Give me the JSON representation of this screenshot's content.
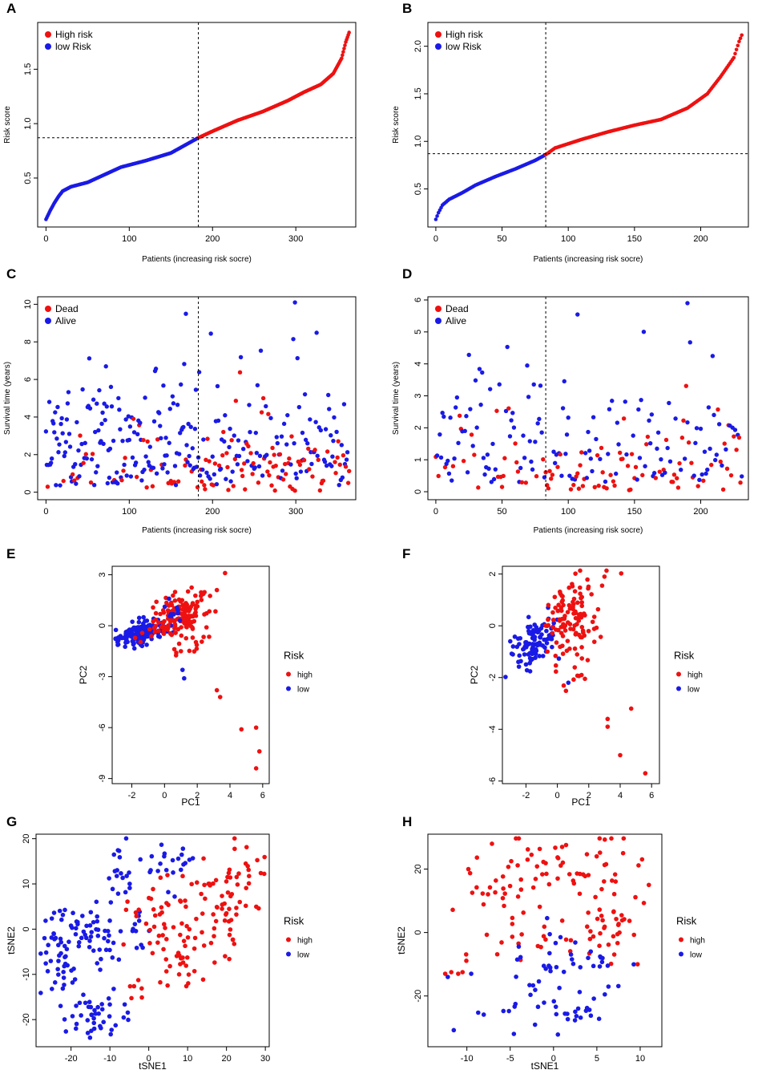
{
  "colors": {
    "high": "#ee1111",
    "low": "#1a1ae6",
    "frame": "#000000"
  },
  "chart_data": [
    {
      "panel": "A",
      "type": "scatter",
      "kind": "riskcurve",
      "n": 365,
      "cutoff_index": 183,
      "cutoff_score": 0.87,
      "curve": [
        [
          0,
          0.12
        ],
        [
          5,
          0.2
        ],
        [
          10,
          0.27
        ],
        [
          15,
          0.33
        ],
        [
          20,
          0.38
        ],
        [
          30,
          0.42
        ],
        [
          50,
          0.46
        ],
        [
          70,
          0.53
        ],
        [
          90,
          0.6
        ],
        [
          120,
          0.66
        ],
        [
          150,
          0.73
        ],
        [
          183,
          0.87
        ],
        [
          200,
          0.93
        ],
        [
          230,
          1.03
        ],
        [
          260,
          1.11
        ],
        [
          290,
          1.21
        ],
        [
          310,
          1.29
        ],
        [
          330,
          1.36
        ],
        [
          345,
          1.46
        ],
        [
          355,
          1.6
        ],
        [
          360,
          1.75
        ],
        [
          365,
          1.86
        ]
      ],
      "xlim": [
        -10,
        372
      ],
      "ylim": [
        0.05,
        1.93
      ],
      "xticks": [
        0,
        100,
        200,
        300
      ],
      "yticks": [
        0.5,
        1.0,
        1.5
      ],
      "ytick_labels": [
        "0.5",
        "1.0",
        "1.5"
      ],
      "xlabel": "Patients (increasing risk socre)",
      "ylabel": "Risk score",
      "legend": [
        {
          "label": "High risk",
          "group": "high"
        },
        {
          "label": "low Risk",
          "group": "low"
        }
      ]
    },
    {
      "panel": "B",
      "type": "scatter",
      "kind": "riskcurve",
      "n": 232,
      "cutoff_index": 83,
      "cutoff_score": 0.87,
      "curve": [
        [
          0,
          0.18
        ],
        [
          2,
          0.25
        ],
        [
          5,
          0.33
        ],
        [
          10,
          0.39
        ],
        [
          20,
          0.46
        ],
        [
          30,
          0.54
        ],
        [
          45,
          0.63
        ],
        [
          60,
          0.71
        ],
        [
          75,
          0.8
        ],
        [
          83,
          0.86
        ],
        [
          90,
          0.93
        ],
        [
          110,
          1.02
        ],
        [
          130,
          1.1
        ],
        [
          150,
          1.17
        ],
        [
          170,
          1.23
        ],
        [
          190,
          1.35
        ],
        [
          205,
          1.5
        ],
        [
          215,
          1.68
        ],
        [
          225,
          1.88
        ],
        [
          229,
          2.05
        ],
        [
          232,
          2.15
        ]
      ],
      "xlim": [
        -6,
        236
      ],
      "ylim": [
        0.1,
        2.25
      ],
      "xticks": [
        0,
        50,
        100,
        150,
        200
      ],
      "yticks": [
        0.5,
        1.0,
        1.5,
        2.0
      ],
      "ytick_labels": [
        "0.5",
        "1.0",
        "1.5",
        "2.0"
      ],
      "xlabel": "Patients (increasing risk socre)",
      "ylabel": "Risk score",
      "legend": [
        {
          "label": "High risk",
          "group": "high"
        },
        {
          "label": "low Risk",
          "group": "low"
        }
      ]
    },
    {
      "panel": "C",
      "type": "scatter",
      "kind": "survival",
      "n": 365,
      "cutoff_index": 183,
      "ymax": 10.1,
      "xlim": [
        -10,
        372
      ],
      "ylim": [
        -0.4,
        10.4
      ],
      "xticks": [
        0,
        100,
        200,
        300
      ],
      "yticks": [
        0,
        2,
        4,
        6,
        8,
        10
      ],
      "ytick_labels": [
        "0",
        "2",
        "4",
        "6",
        "8",
        "10"
      ],
      "xlabel": "Patients (increasing risk socre)",
      "ylabel": "Survival time (years)",
      "legend": [
        {
          "label": "Dead",
          "group": "high"
        },
        {
          "label": "Alive",
          "group": "low"
        }
      ]
    },
    {
      "panel": "D",
      "type": "scatter",
      "kind": "survival",
      "n": 232,
      "cutoff_index": 83,
      "ymax": 5.9,
      "xlim": [
        -6,
        236
      ],
      "ylim": [
        -0.25,
        6.1
      ],
      "xticks": [
        0,
        50,
        100,
        150,
        200
      ],
      "yticks": [
        0,
        1,
        2,
        3,
        4,
        5,
        6
      ],
      "ytick_labels": [
        "0",
        "1",
        "2",
        "3",
        "4",
        "5",
        "6"
      ],
      "xlabel": "Patients (increasing risk socre)",
      "ylabel": "Survival time (years)",
      "legend": [
        {
          "label": "Dead",
          "group": "high"
        },
        {
          "label": "Alive",
          "group": "low"
        }
      ]
    },
    {
      "panel": "E",
      "type": "scatter",
      "kind": "cluster",
      "xlim": [
        -3.2,
        6.4
      ],
      "ylim": [
        -9.3,
        3.5
      ],
      "xticks": [
        -2,
        0,
        2,
        4,
        6
      ],
      "yticks": [
        -9,
        -6,
        -3,
        0,
        3
      ],
      "ytick_labels": [
        "-9",
        "-6",
        "-3",
        "0",
        "3"
      ],
      "xlabel": "PC1",
      "ylabel": "PC2",
      "clusters": [
        {
          "group": "low",
          "cx": -1.5,
          "cy": -0.5,
          "sx": 0.75,
          "sy": 0.35,
          "n": 170,
          "tilt": 0.3
        },
        {
          "group": "high",
          "cx": 0.9,
          "cy": 0.6,
          "sx": 0.8,
          "sy": 0.7,
          "n": 150,
          "tilt": 0.2
        },
        {
          "group": "high",
          "cx": 1.8,
          "cy": -1.4,
          "sx": 0.6,
          "sy": 0.6,
          "n": 12,
          "tilt": 0
        },
        {
          "group": "low",
          "cx": 0.4,
          "cy": 0.8,
          "sx": 0.4,
          "sy": 0.6,
          "n": 10,
          "tilt": 0
        }
      ],
      "extra": [
        {
          "x": 3.7,
          "y": 3.1,
          "group": "high"
        },
        {
          "x": 3.2,
          "y": 2.1,
          "group": "high"
        },
        {
          "x": 3.2,
          "y": -3.8,
          "group": "high"
        },
        {
          "x": 3.4,
          "y": -4.2,
          "group": "high"
        },
        {
          "x": 4.7,
          "y": -6.1,
          "group": "high"
        },
        {
          "x": 5.6,
          "y": -6.0,
          "group": "high"
        },
        {
          "x": 5.8,
          "y": -7.4,
          "group": "high"
        },
        {
          "x": 5.6,
          "y": -8.4,
          "group": "high"
        },
        {
          "x": 1.1,
          "y": -2.6,
          "group": "low"
        },
        {
          "x": 1.2,
          "y": -3.1,
          "group": "low"
        }
      ],
      "legend_title": "Risk",
      "legend": [
        {
          "label": "high",
          "group": "high"
        },
        {
          "label": "low",
          "group": "low"
        }
      ]
    },
    {
      "panel": "F",
      "type": "scatter",
      "kind": "cluster",
      "xlim": [
        -3.5,
        6.5
      ],
      "ylim": [
        -6.1,
        2.3
      ],
      "xticks": [
        -2,
        0,
        2,
        4,
        6
      ],
      "yticks": [
        -6,
        -4,
        -2,
        0,
        2
      ],
      "ytick_labels": [
        "-6",
        "-4",
        "-2",
        "0",
        "2"
      ],
      "xlabel": "PC1",
      "ylabel": "PC2",
      "clusters": [
        {
          "group": "low",
          "cx": -1.5,
          "cy": -0.6,
          "sx": 0.7,
          "sy": 0.45,
          "n": 105,
          "tilt": 0.25
        },
        {
          "group": "high",
          "cx": 0.9,
          "cy": 0.3,
          "sx": 0.9,
          "sy": 0.75,
          "n": 115,
          "tilt": 0.25
        },
        {
          "group": "high",
          "cx": 1.2,
          "cy": -2.1,
          "sx": 0.6,
          "sy": 0.45,
          "n": 8,
          "tilt": 0
        }
      ],
      "extra": [
        {
          "x": 3.2,
          "y": -3.6,
          "group": "high"
        },
        {
          "x": 3.2,
          "y": -3.9,
          "group": "high"
        },
        {
          "x": 4.7,
          "y": -3.2,
          "group": "high"
        },
        {
          "x": 4.0,
          "y": -5.0,
          "group": "high"
        },
        {
          "x": 5.6,
          "y": -5.7,
          "group": "high"
        },
        {
          "x": 3.0,
          "y": 1.9,
          "group": "high"
        },
        {
          "x": 0.7,
          "y": -2.2,
          "group": "low"
        },
        {
          "x": -3.0,
          "y": -0.6,
          "group": "low"
        }
      ],
      "legend_title": "Risk",
      "legend": [
        {
          "label": "high",
          "group": "high"
        },
        {
          "label": "low",
          "group": "low"
        }
      ]
    },
    {
      "panel": "G",
      "type": "scatter",
      "kind": "cluster",
      "xlim": [
        -29,
        31
      ],
      "ylim": [
        -26,
        21
      ],
      "xticks": [
        -20,
        -10,
        0,
        10,
        20,
        30
      ],
      "yticks": [
        -20,
        -10,
        0,
        10,
        20
      ],
      "ytick_labels": [
        "-20",
        "-10",
        "0",
        "10",
        "20"
      ],
      "xlabel": "tSNE1",
      "ylabel": "tSNE2",
      "clusters": [
        {
          "group": "low",
          "cx": -23,
          "cy": -9,
          "sx": 2.5,
          "sy": 6.5,
          "n": 45,
          "tilt": 0
        },
        {
          "group": "low",
          "cx": -18,
          "cy": 1,
          "sx": 3.2,
          "sy": 3.0,
          "n": 35,
          "tilt": 0
        },
        {
          "group": "low",
          "cx": -13,
          "cy": -19,
          "sx": 4.5,
          "sy": 2.5,
          "n": 40,
          "tilt": 0
        },
        {
          "group": "low",
          "cx": -11,
          "cy": -3,
          "sx": 2.0,
          "sy": 3.0,
          "n": 15,
          "tilt": 0
        },
        {
          "group": "low",
          "cx": -8,
          "cy": 10,
          "sx": 1.8,
          "sy": 4.0,
          "n": 18,
          "tilt": 0
        },
        {
          "group": "low",
          "cx": 6,
          "cy": 15,
          "sx": 4.0,
          "sy": 3.0,
          "n": 22,
          "tilt": 0
        },
        {
          "group": "low",
          "cx": -3,
          "cy": 0,
          "sx": 1.5,
          "sy": 3.0,
          "n": 12,
          "tilt": 0
        },
        {
          "group": "high",
          "cx": 20,
          "cy": 8,
          "sx": 5.0,
          "sy": 6.0,
          "n": 75,
          "tilt": 0
        },
        {
          "group": "high",
          "cx": 9,
          "cy": -7,
          "sx": 3.0,
          "sy": 3.5,
          "n": 30,
          "tilt": 0
        },
        {
          "group": "high",
          "cx": 2,
          "cy": 3,
          "sx": 3.5,
          "sy": 4.5,
          "n": 30,
          "tilt": 0
        },
        {
          "group": "high",
          "cx": -3,
          "cy": -15,
          "sx": 1.2,
          "sy": 2.0,
          "n": 6,
          "tilt": 0
        }
      ],
      "extra": [],
      "legend_title": "Risk",
      "legend": [
        {
          "label": "high",
          "group": "high"
        },
        {
          "label": "low",
          "group": "low"
        }
      ]
    },
    {
      "panel": "H",
      "type": "scatter",
      "kind": "cluster",
      "xlim": [
        -14.5,
        12.5
      ],
      "ylim": [
        -36,
        31
      ],
      "xticks": [
        -10,
        -5,
        0,
        5,
        10
      ],
      "yticks": [
        -20,
        0,
        20
      ],
      "ytick_labels": [
        "-20",
        "0",
        "20"
      ],
      "xlabel": "tSNE1",
      "ylabel": "tSNE2",
      "clusters": [
        {
          "group": "high",
          "cx": -7,
          "cy": 15,
          "sx": 2.0,
          "sy": 5.0,
          "n": 25,
          "tilt": 0
        },
        {
          "group": "high",
          "cx": 2,
          "cy": 22,
          "sx": 4.0,
          "sy": 5.0,
          "n": 45,
          "tilt": 0
        },
        {
          "group": "high",
          "cx": 5,
          "cy": 5,
          "sx": 3.0,
          "sy": 8.0,
          "n": 40,
          "tilt": 0
        },
        {
          "group": "high",
          "cx": -4,
          "cy": -3,
          "sx": 3.5,
          "sy": 5.0,
          "n": 20,
          "tilt": 0
        },
        {
          "group": "low",
          "cx": -1,
          "cy": -25,
          "sx": 3.5,
          "sy": 5.0,
          "n": 40,
          "tilt": 0
        },
        {
          "group": "low",
          "cx": 5,
          "cy": -10,
          "sx": 3.0,
          "sy": 4.0,
          "n": 18,
          "tilt": 0
        },
        {
          "group": "low",
          "cx": -1,
          "cy": -7,
          "sx": 1.5,
          "sy": 5.0,
          "n": 12,
          "tilt": 0
        }
      ],
      "extra": [
        {
          "x": -12.5,
          "y": -13,
          "group": "high"
        },
        {
          "x": -11.8,
          "y": -12.5,
          "group": "high"
        },
        {
          "x": -11,
          "y": -13,
          "group": "high"
        },
        {
          "x": -10.5,
          "y": -12.5,
          "group": "high"
        },
        {
          "x": -12.2,
          "y": -14,
          "group": "low"
        },
        {
          "x": -9.5,
          "y": -13,
          "group": "low"
        },
        {
          "x": 11,
          "y": 15,
          "group": "high"
        },
        {
          "x": 9.7,
          "y": -10,
          "group": "high"
        }
      ],
      "legend_title": "Risk",
      "legend": [
        {
          "label": "high",
          "group": "high"
        },
        {
          "label": "low",
          "group": "low"
        }
      ]
    }
  ]
}
